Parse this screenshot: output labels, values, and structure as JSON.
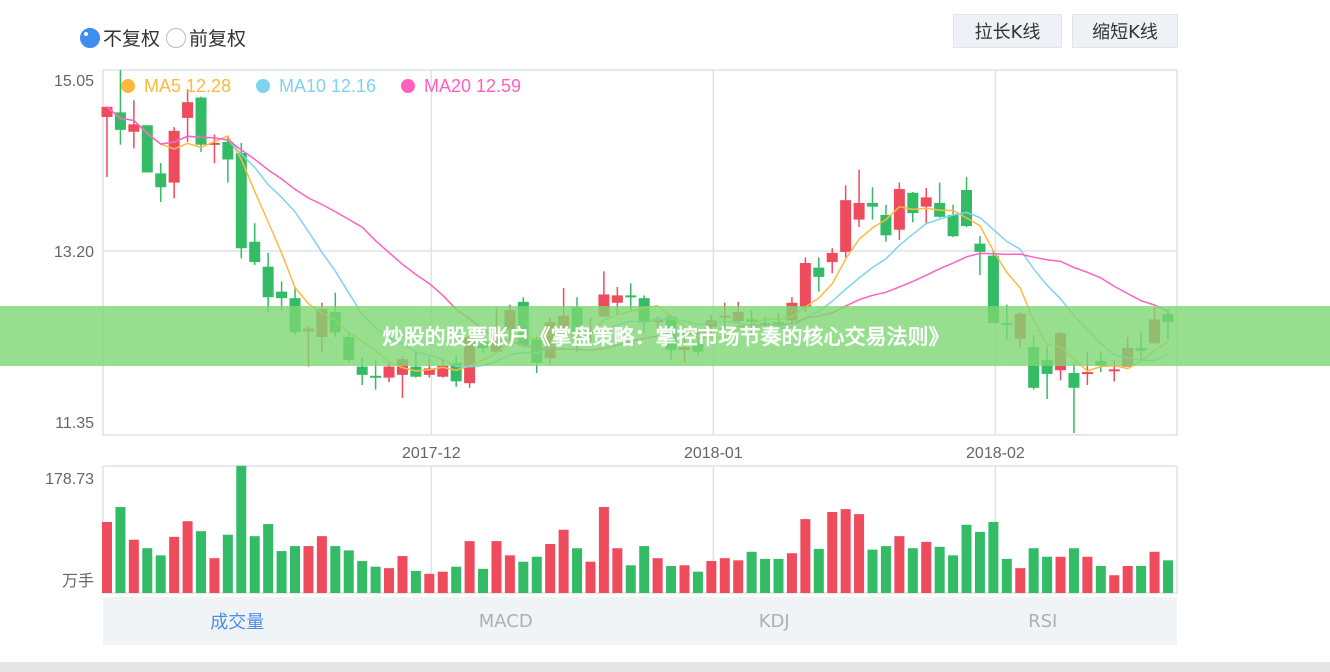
{
  "controls": {
    "adjust_options": [
      {
        "label": "不复权",
        "selected": true
      },
      {
        "label": "前复权",
        "selected": false
      }
    ],
    "zoom_in_label": "拉长K线",
    "zoom_out_label": "缩短K线"
  },
  "banner": {
    "text": "炒股的股票账户《掌盘策略：掌控市场节奏的核心交易法则》"
  },
  "tabs": [
    {
      "label": "成交量",
      "active": true
    },
    {
      "label": "MACD",
      "active": false
    },
    {
      "label": "KDJ",
      "active": false
    },
    {
      "label": "RSI",
      "active": false
    }
  ],
  "colors": {
    "up": "#ee4b5d",
    "down": "#33bb66",
    "ma5": "#ffb840",
    "ma10": "#7fd3f0",
    "ma20": "#ff60c0",
    "accent": "#3d8ef0"
  },
  "chart_data": [
    {
      "type": "candlestick",
      "legend": [
        {
          "name": "MA5",
          "value": "12.28",
          "period": 5
        },
        {
          "name": "MA10",
          "value": "12.16",
          "period": 10
        },
        {
          "name": "MA20",
          "value": "12.59",
          "period": 20
        }
      ],
      "legend_placement": "top-left",
      "yticks": [
        "15.05",
        "13.20",
        "11.35"
      ],
      "ylim": [
        11.35,
        15.05
      ],
      "xticks": [
        {
          "label": "2017-12",
          "index": 24
        },
        {
          "label": "2018-01",
          "index": 45
        },
        {
          "label": "2018-02",
          "index": 66
        }
      ],
      "grid": true,
      "ohlc_order": [
        "open",
        "close",
        "high",
        "low"
      ],
      "candles": [
        [
          14.65,
          14.76,
          14.76,
          14.0
        ],
        [
          14.7,
          14.51,
          15.16,
          14.35
        ],
        [
          14.49,
          14.57,
          14.83,
          14.31
        ],
        [
          14.56,
          14.05,
          14.56,
          14.05
        ],
        [
          14.04,
          13.89,
          14.15,
          13.73
        ],
        [
          13.94,
          14.5,
          14.54,
          13.77
        ],
        [
          14.64,
          14.81,
          14.95,
          14.38
        ],
        [
          14.86,
          14.35,
          14.87,
          14.27
        ],
        [
          14.35,
          14.37,
          14.46,
          14.15
        ],
        [
          14.38,
          14.19,
          14.43,
          13.94
        ],
        [
          14.26,
          13.23,
          14.37,
          13.12
        ],
        [
          13.3,
          13.08,
          13.5,
          13.05
        ],
        [
          13.03,
          12.7,
          13.18,
          12.54
        ],
        [
          12.76,
          12.69,
          12.87,
          12.55
        ],
        [
          12.69,
          12.32,
          12.81,
          12.29
        ],
        [
          12.33,
          12.36,
          12.39,
          11.95
        ],
        [
          12.27,
          12.57,
          12.64,
          12.1
        ],
        [
          12.54,
          12.32,
          12.75,
          12.27
        ],
        [
          12.27,
          12.02,
          12.31,
          11.99
        ],
        [
          11.95,
          11.86,
          12.05,
          11.75
        ],
        [
          11.85,
          11.83,
          12.02,
          11.7
        ],
        [
          11.83,
          11.95,
          12.0,
          11.78
        ],
        [
          11.86,
          12.03,
          12.06,
          11.61
        ],
        [
          11.95,
          11.84,
          12.11,
          11.83
        ],
        [
          11.86,
          11.93,
          12.05,
          11.83
        ],
        [
          11.84,
          11.96,
          12.04,
          11.83
        ],
        [
          11.99,
          11.79,
          12.07,
          11.73
        ],
        [
          11.77,
          12.27,
          12.31,
          11.72
        ],
        [
          12.22,
          12.15,
          12.38,
          12.1
        ],
        [
          12.11,
          12.31,
          12.59,
          12.1
        ],
        [
          12.35,
          12.56,
          12.62,
          12.22
        ],
        [
          12.65,
          12.18,
          12.7,
          12.16
        ],
        [
          12.24,
          11.99,
          12.27,
          11.88
        ],
        [
          12.04,
          12.43,
          12.48,
          11.97
        ],
        [
          12.35,
          12.5,
          12.8,
          12.31
        ],
        [
          12.59,
          12.27,
          12.7,
          12.1
        ],
        [
          12.31,
          12.33,
          12.48,
          12.21
        ],
        [
          12.49,
          12.73,
          12.98,
          12.49
        ],
        [
          12.64,
          12.72,
          12.81,
          12.51
        ],
        [
          12.72,
          12.7,
          12.85,
          12.56
        ],
        [
          12.69,
          12.43,
          12.72,
          12.31
        ],
        [
          12.43,
          12.46,
          12.49,
          12.31
        ],
        [
          12.49,
          12.13,
          12.51,
          12.02
        ],
        [
          12.13,
          12.16,
          12.27,
          11.99
        ],
        [
          12.2,
          12.11,
          12.35,
          12.07
        ],
        [
          12.38,
          12.45,
          12.51,
          12.31
        ],
        [
          12.48,
          12.5,
          12.64,
          12.38
        ],
        [
          12.44,
          12.54,
          12.65,
          12.42
        ],
        [
          12.46,
          12.44,
          12.56,
          12.27
        ],
        [
          12.42,
          12.4,
          12.49,
          12.27
        ],
        [
          12.43,
          12.42,
          12.53,
          12.31
        ],
        [
          12.45,
          12.64,
          12.7,
          12.4
        ],
        [
          12.59,
          13.07,
          13.13,
          12.54
        ],
        [
          13.02,
          12.92,
          13.13,
          12.76
        ],
        [
          13.08,
          13.18,
          13.23,
          12.96
        ],
        [
          13.19,
          13.75,
          13.91,
          13.13
        ],
        [
          13.54,
          13.72,
          14.08,
          13.46
        ],
        [
          13.72,
          13.68,
          13.89,
          13.54
        ],
        [
          13.59,
          13.37,
          13.7,
          13.3
        ],
        [
          13.43,
          13.87,
          13.94,
          13.32
        ],
        [
          13.83,
          13.61,
          13.84,
          13.51
        ],
        [
          13.68,
          13.78,
          13.88,
          13.5
        ],
        [
          13.72,
          13.57,
          13.94,
          13.56
        ],
        [
          13.59,
          13.36,
          13.7,
          13.35
        ],
        [
          13.86,
          13.47,
          14.0,
          13.46
        ],
        [
          13.28,
          13.19,
          13.36,
          12.94
        ],
        [
          13.15,
          12.42,
          13.21,
          12.42
        ],
        [
          12.42,
          12.4,
          12.62,
          12.24
        ],
        [
          12.25,
          12.52,
          12.54,
          12.16
        ],
        [
          12.16,
          11.72,
          12.29,
          11.7
        ],
        [
          12.02,
          11.87,
          12.17,
          11.6
        ],
        [
          11.91,
          12.31,
          12.32,
          11.8
        ],
        [
          11.88,
          11.72,
          11.99,
          11.23
        ],
        [
          11.87,
          11.89,
          12.11,
          11.75
        ],
        [
          12.01,
          11.96,
          12.11,
          11.89
        ],
        [
          11.9,
          11.92,
          12.02,
          11.79
        ],
        [
          11.95,
          12.15,
          12.27,
          11.95
        ],
        [
          12.15,
          12.12,
          12.32,
          12.02
        ],
        [
          12.2,
          12.46,
          12.59,
          12.2
        ],
        [
          12.52,
          12.43,
          12.57,
          12.24
        ]
      ]
    },
    {
      "type": "bar",
      "ytick_top": "178.73",
      "yunit": "万手",
      "ylim": [
        0,
        178.73
      ],
      "values": [
        100,
        121,
        75,
        63,
        53,
        79,
        101,
        87,
        49,
        82,
        179,
        80,
        97,
        59,
        66,
        66,
        80,
        66,
        60,
        45,
        37,
        35,
        52,
        31,
        27,
        30,
        37,
        73,
        34,
        73,
        53,
        44,
        51,
        69,
        89,
        63,
        44,
        121,
        63,
        39,
        66,
        49,
        38,
        39,
        30,
        45,
        49,
        46,
        58,
        48,
        48,
        56,
        104,
        62,
        114,
        118,
        111,
        61,
        66,
        80,
        63,
        72,
        65,
        53,
        96,
        86,
        100,
        48,
        35,
        63,
        51,
        51,
        63,
        51,
        38,
        25,
        38,
        38,
        58,
        46
      ]
    }
  ]
}
